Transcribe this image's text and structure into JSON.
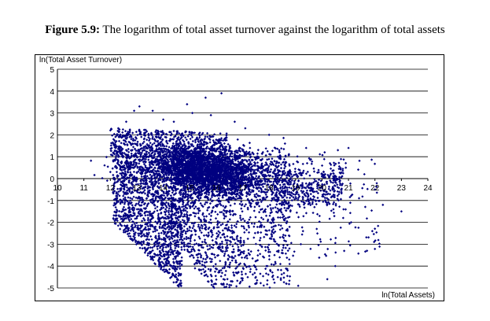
{
  "figure": {
    "label": "Figure 5.9:",
    "text": " The logarithm of total asset turnover against the logarithm of total assets"
  },
  "chart_data": {
    "type": "scatter",
    "xlabel": "ln(Total Assets)",
    "ylabel": "ln(Total Asset Turnover)",
    "xlim": [
      10,
      24
    ],
    "ylim": [
      -5,
      5
    ],
    "xticks": [
      10,
      11,
      12,
      13,
      14,
      15,
      16,
      17,
      18,
      19,
      20,
      21,
      22,
      23,
      24
    ],
    "yticks": [
      5,
      4,
      3,
      2,
      1,
      0,
      -1,
      -2,
      -3,
      -4,
      -5
    ],
    "grid": "horizontal",
    "marker_color": "#000080",
    "points_estimated": [
      [
        12.2,
        1.4
      ],
      [
        12.4,
        1.9
      ],
      [
        12.3,
        2.3
      ],
      [
        12.6,
        2.6
      ],
      [
        12.9,
        3.1
      ],
      [
        13.1,
        3.3
      ],
      [
        13.6,
        3.1
      ],
      [
        14.0,
        2.7
      ],
      [
        14.4,
        2.6
      ],
      [
        14.9,
        3.4
      ],
      [
        15.6,
        3.7
      ],
      [
        16.2,
        3.9
      ],
      [
        15.1,
        3.0
      ],
      [
        15.8,
        2.9
      ],
      [
        16.7,
        2.6
      ],
      [
        17.1,
        2.3
      ],
      [
        18.0,
        2.0
      ],
      [
        18.6,
        1.6
      ],
      [
        19.4,
        1.4
      ],
      [
        20.1,
        1.2
      ],
      [
        20.6,
        1.3
      ],
      [
        21.0,
        1.4
      ],
      [
        21.6,
        0.2
      ],
      [
        22.0,
        -0.5
      ],
      [
        23.0,
        -1.5
      ],
      [
        21.9,
        -2.4
      ],
      [
        21.7,
        -3.3
      ],
      [
        20.2,
        -4.6
      ],
      [
        20.5,
        -4.0
      ],
      [
        19.1,
        -4.9
      ],
      [
        18.7,
        -4.2
      ],
      [
        17.5,
        -4.5
      ],
      [
        16.6,
        -4.7
      ],
      [
        15.8,
        -4.4
      ],
      [
        15.2,
        -4.1
      ],
      [
        14.6,
        -3.9
      ],
      [
        13.9,
        -3.1
      ],
      [
        13.3,
        -2.3
      ],
      [
        12.8,
        -1.1
      ],
      [
        12.0,
        0.3
      ],
      [
        12.3,
        0.8
      ],
      [
        20.3,
        0.7
      ],
      [
        20.9,
        0.5
      ],
      [
        21.4,
        -0.9
      ],
      [
        22.3,
        -1.2
      ],
      [
        21.1,
        -2.0
      ],
      [
        20.8,
        -1.8
      ],
      [
        19.8,
        -2.3
      ],
      [
        19.2,
        -3.0
      ],
      [
        18.4,
        -3.6
      ]
    ]
  }
}
